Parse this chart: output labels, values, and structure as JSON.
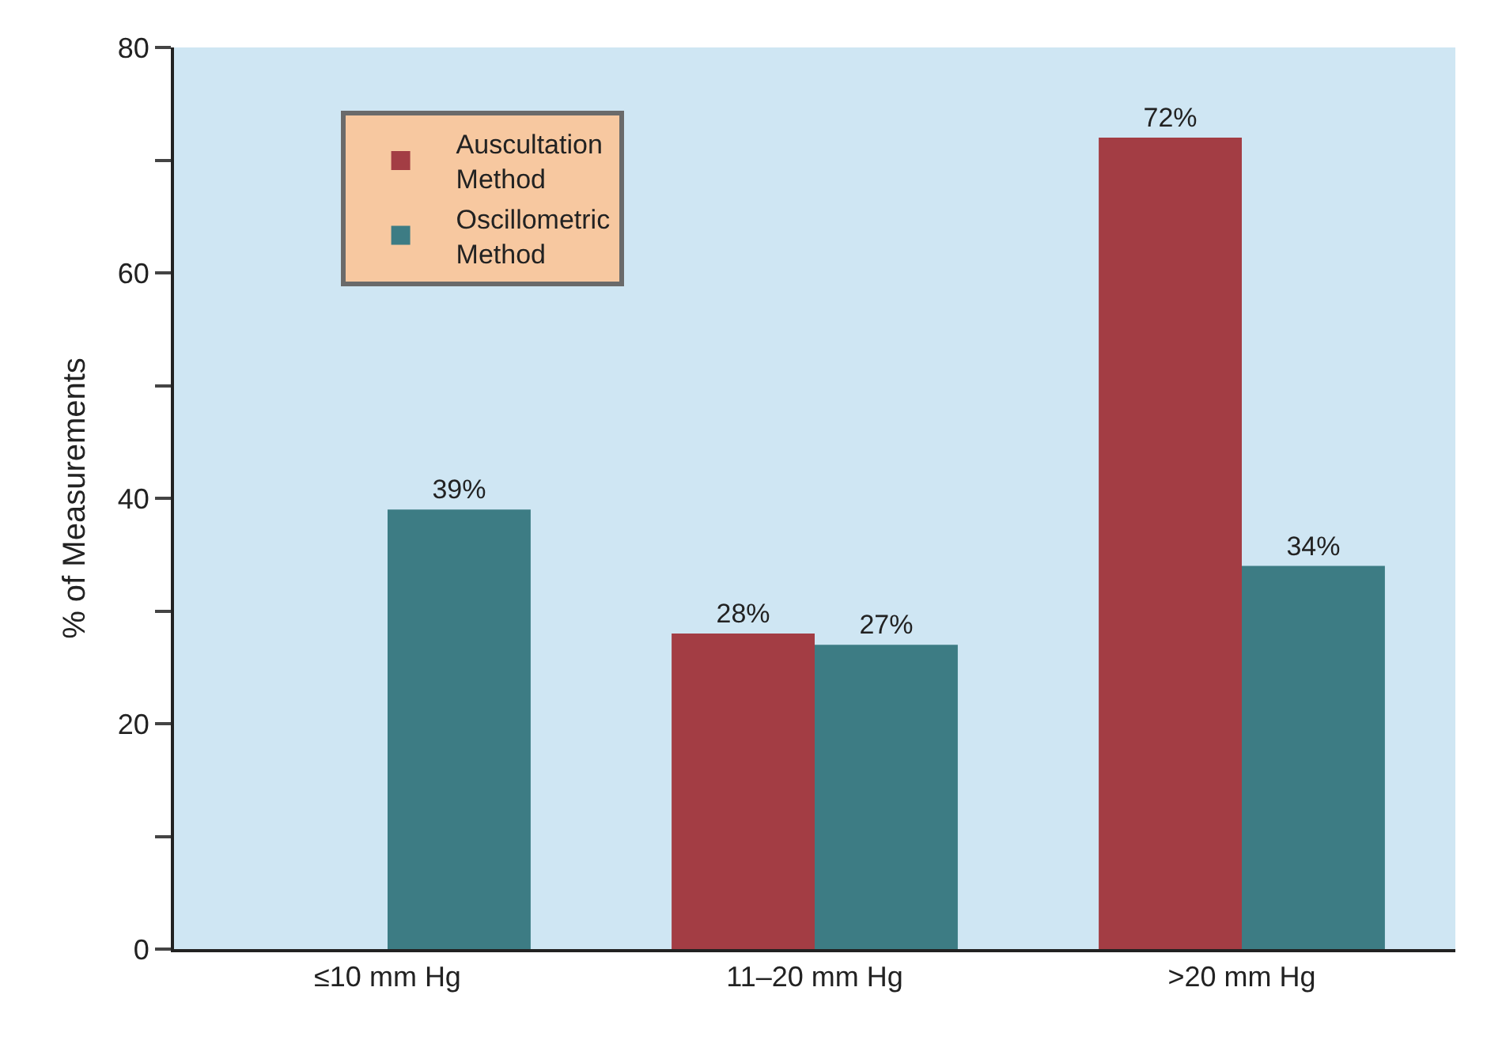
{
  "chart_data": {
    "type": "bar",
    "ylabel": "% of Measurements",
    "categories": [
      "≤10 mm Hg",
      "11–20 mm Hg",
      ">20 mm Hg"
    ],
    "series": [
      {
        "name": "Auscultation\nMethod",
        "color": "#a33d44",
        "values": [
          null,
          28,
          72
        ],
        "value_labels": [
          null,
          "28%",
          "72%"
        ]
      },
      {
        "name": "Oscillometric\nMethod",
        "color": "#3d7c84",
        "values": [
          39,
          27,
          34
        ],
        "value_labels": [
          "39%",
          "27%",
          "34%"
        ]
      }
    ],
    "ylim": [
      0,
      80
    ],
    "yticks": [
      0,
      {
        "value": 10,
        "label": null
      },
      20,
      {
        "value": 30,
        "label": null
      },
      40,
      {
        "value": 50,
        "label": null
      },
      60,
      {
        "value": 70,
        "label": null
      },
      80
    ],
    "grid": false,
    "legend": "top left"
  }
}
